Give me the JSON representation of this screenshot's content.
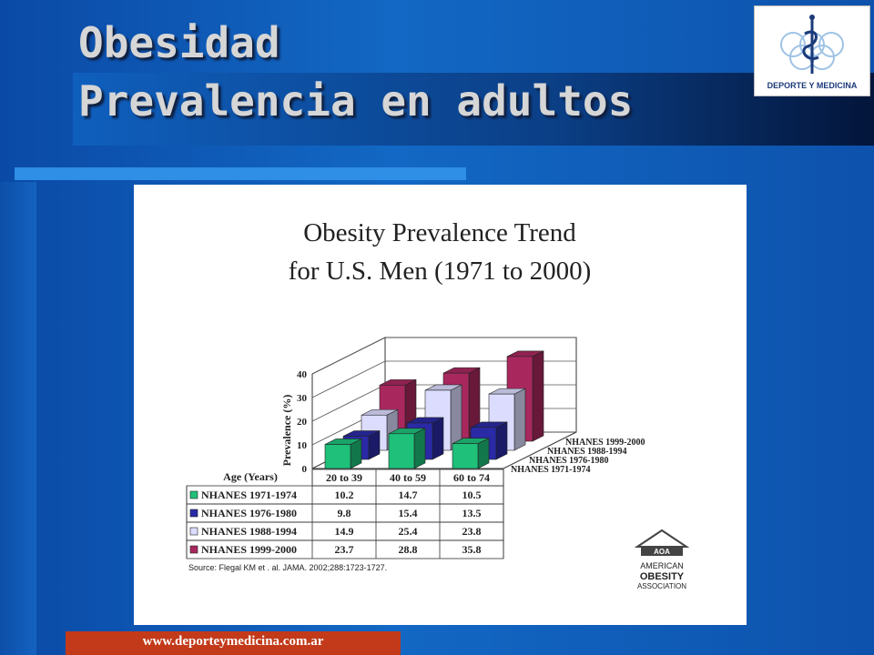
{
  "slide": {
    "title_line1": "Obesidad",
    "title_line2": "Prevalencia en adultos",
    "footer_url": "www.deporteymedicina.com.ar",
    "logo_text": "DEPORTE Y MEDICINA"
  },
  "chart_data": {
    "type": "bar",
    "title_line1": "Obesity Prevalence Trend",
    "title_line2": "for U.S. Men (1971 to 2000)",
    "ylabel": "Prevalence (%)",
    "xlabel": "Age (Years)",
    "yticks": [
      "0",
      "10",
      "20",
      "30",
      "40"
    ],
    "ylim": [
      0,
      40
    ],
    "categories": [
      "20 to 39",
      "40 to 59",
      "60 to 74"
    ],
    "series": [
      {
        "name": "NHANES 1971-1974",
        "color": "#1ec07a",
        "values": [
          10.2,
          14.7,
          10.5
        ],
        "labels": [
          "10.2",
          "14.7",
          "10.5"
        ]
      },
      {
        "name": "NHANES 1976-1980",
        "color": "#2a2aa6",
        "values": [
          9.8,
          15.4,
          13.5
        ],
        "labels": [
          "9.8",
          "15.4",
          "13.5"
        ]
      },
      {
        "name": "NHANES 1988-1994",
        "color": "#dcdcff",
        "values": [
          14.9,
          25.4,
          23.8
        ],
        "labels": [
          "14.9",
          "25.4",
          "23.8"
        ]
      },
      {
        "name": "NHANES 1999-2000",
        "color": "#a8285e",
        "values": [
          23.7,
          28.8,
          35.8
        ],
        "labels": [
          "23.7",
          "28.8",
          "35.8"
        ]
      }
    ],
    "source": "Source: Flegal KM et . al. JAMA. 2002;288:1723-1727.",
    "org_logo": {
      "line1": "AMERICAN",
      "line2": "OBESITY",
      "line3": "ASSOCIATION",
      "mark": "AOA"
    }
  }
}
